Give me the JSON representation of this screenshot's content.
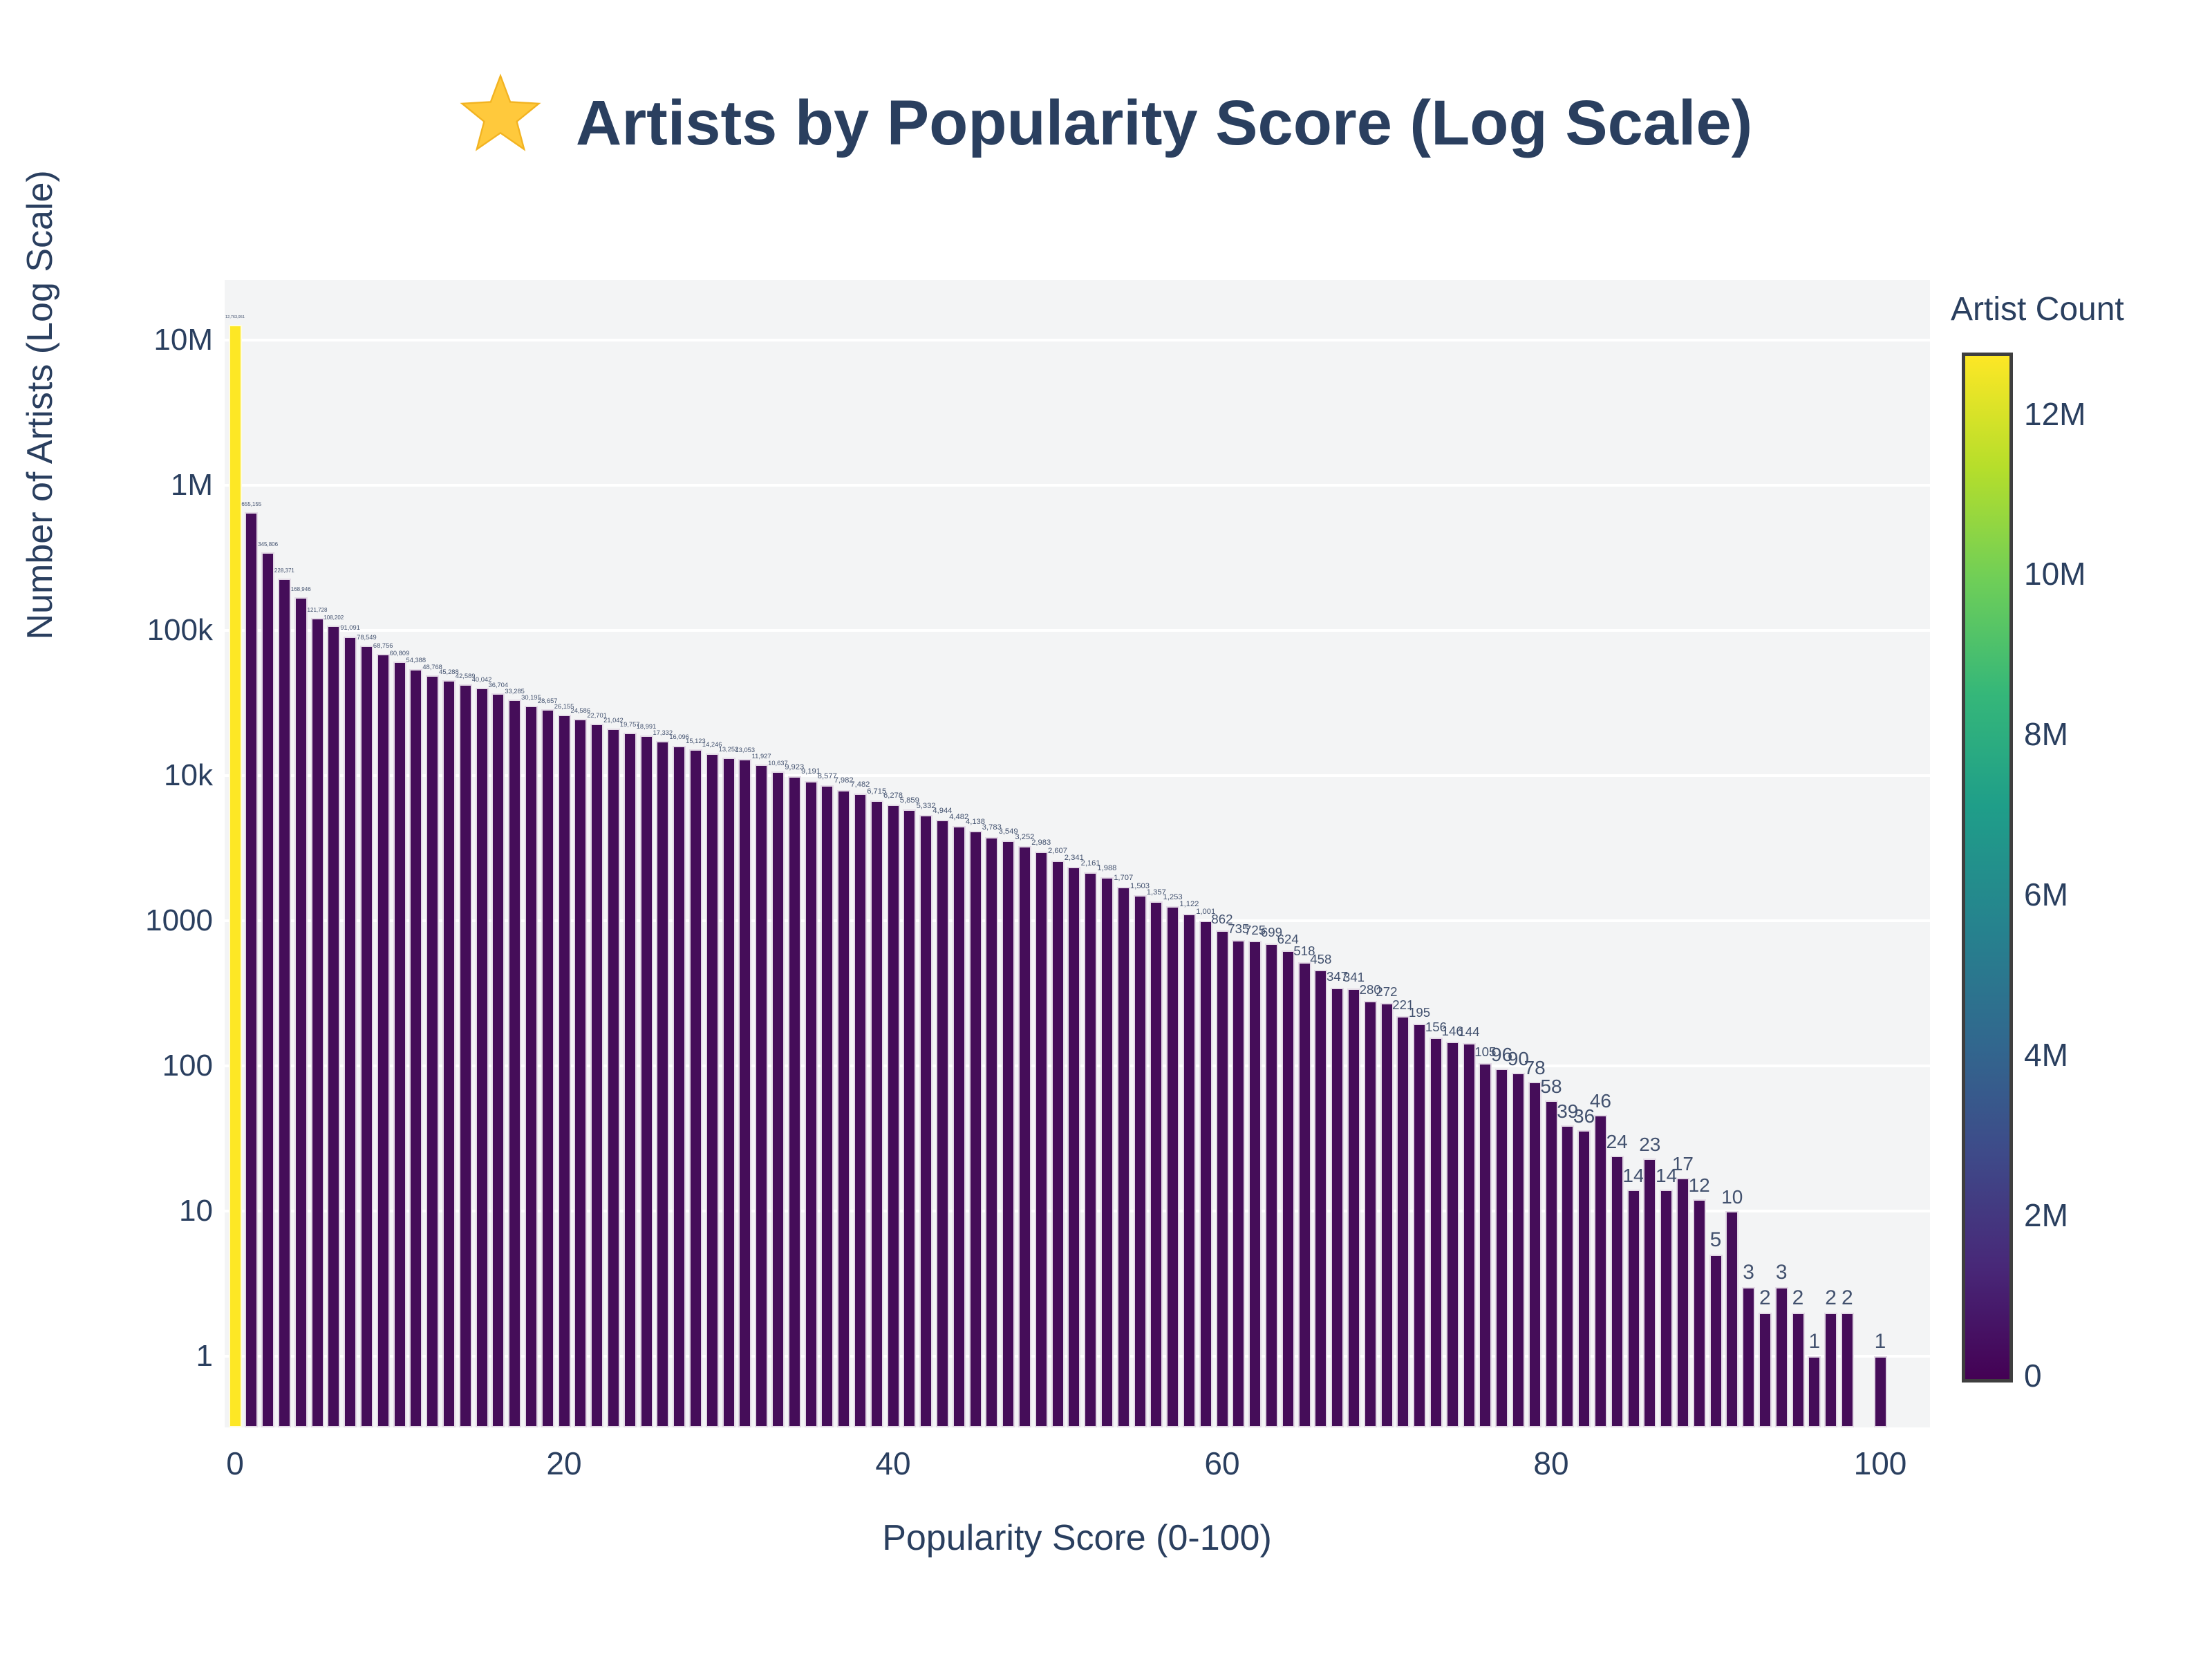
{
  "chart_data": {
    "type": "bar",
    "title": "Artists by Popularity Score (Log Scale)",
    "title_icon": "star-icon",
    "xlabel": "Popularity Score (0-100)",
    "ylabel": "Number of Artists (Log Scale)",
    "x": [
      0,
      1,
      2,
      3,
      4,
      5,
      6,
      7,
      8,
      9,
      10,
      11,
      12,
      13,
      14,
      15,
      16,
      17,
      18,
      19,
      20,
      21,
      22,
      23,
      24,
      25,
      26,
      27,
      28,
      29,
      30,
      31,
      32,
      33,
      34,
      35,
      36,
      37,
      38,
      39,
      40,
      41,
      42,
      43,
      44,
      45,
      46,
      47,
      48,
      49,
      50,
      51,
      52,
      53,
      54,
      55,
      56,
      57,
      58,
      59,
      60,
      61,
      62,
      63,
      64,
      65,
      66,
      67,
      68,
      69,
      70,
      71,
      72,
      73,
      74,
      75,
      76,
      77,
      78,
      79,
      80,
      81,
      82,
      83,
      84,
      85,
      86,
      87,
      88,
      89,
      90,
      91,
      92,
      93,
      94,
      95,
      96,
      97,
      98,
      99,
      100
    ],
    "values": [
      12763951,
      655155,
      345806,
      228371,
      168946,
      121728,
      108202,
      91091,
      78549,
      68756,
      60809,
      54388,
      48768,
      45288,
      42589,
      40042,
      36704,
      33285,
      30195,
      28657,
      26155,
      24586,
      22701,
      21042,
      19757,
      18991,
      17332,
      16096,
      15123,
      14246,
      13252,
      13053,
      11927,
      10637,
      9923,
      9191,
      8577,
      7982,
      7482,
      6715,
      6278,
      5859,
      5332,
      4944,
      4482,
      4138,
      3783,
      3549,
      3252,
      2983,
      2607,
      2341,
      2161,
      1988,
      1707,
      1503,
      1357,
      1253,
      1122,
      1001,
      862,
      735,
      725,
      699,
      624,
      518,
      458,
      347,
      341,
      280,
      272,
      221,
      195,
      156,
      146,
      144,
      105,
      96,
      90,
      78,
      58,
      39,
      36,
      46,
      24,
      14,
      23,
      14,
      17,
      12,
      5,
      10,
      3,
      2,
      3,
      2,
      1,
      2,
      2,
      0,
      1
    ],
    "bar_value_labels_visible": true,
    "xlim": [
      0,
      100
    ],
    "ylim_log": [
      0.32,
      25000000
    ],
    "grid": "horizontal-white-on-gray",
    "x_axis": {
      "ticks": [
        {
          "label": "0",
          "value": 0
        },
        {
          "label": "20",
          "value": 20
        },
        {
          "label": "40",
          "value": 40
        },
        {
          "label": "60",
          "value": 60
        },
        {
          "label": "80",
          "value": 80
        },
        {
          "label": "100",
          "value": 100
        }
      ]
    },
    "y_axis": {
      "scale": "log",
      "ticks": [
        {
          "label": "1",
          "value": 1
        },
        {
          "label": "10",
          "value": 10
        },
        {
          "label": "100",
          "value": 100
        },
        {
          "label": "1000",
          "value": 1000
        },
        {
          "label": "10k",
          "value": 10000
        },
        {
          "label": "100k",
          "value": 100000
        },
        {
          "label": "1M",
          "value": 1000000
        },
        {
          "label": "10M",
          "value": 10000000
        }
      ]
    },
    "colorbar": {
      "title": "Artist Count",
      "colormap": "viridis",
      "min": 0,
      "max": 12763951,
      "legend_position": "right",
      "ticks": [
        {
          "label": "0",
          "value": 0
        },
        {
          "label": "2M",
          "value": 2000000
        },
        {
          "label": "4M",
          "value": 4000000
        },
        {
          "label": "6M",
          "value": 6000000
        },
        {
          "label": "8M",
          "value": 8000000
        },
        {
          "label": "10M",
          "value": 10000000
        },
        {
          "label": "12M",
          "value": 12000000
        }
      ]
    },
    "colors": {
      "bar_low_count": "#450d59",
      "bar_high_count": "#fde725",
      "text": "#2a3f5f",
      "plot_background": "#f3f4f5",
      "gridline": "#ffffff",
      "star": "#ffc93c"
    }
  }
}
